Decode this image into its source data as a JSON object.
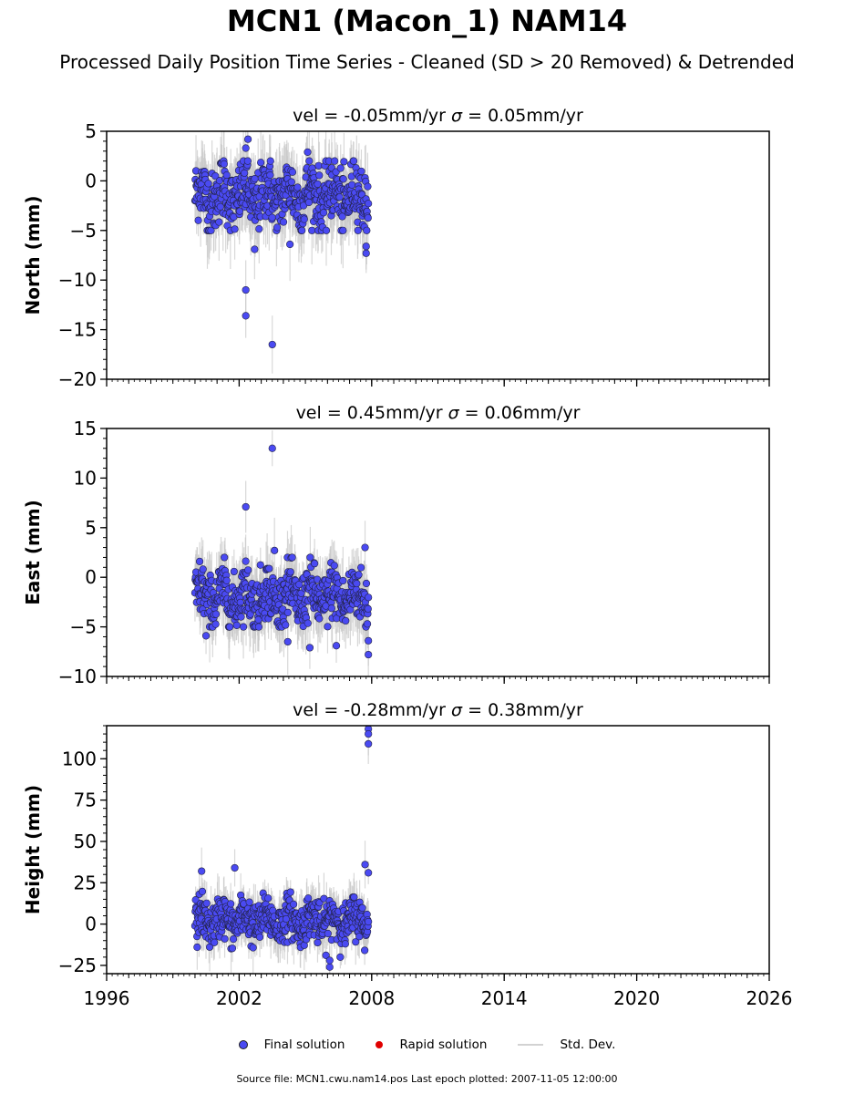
{
  "title": "MCN1 (Macon_1) NAM14",
  "subtitle": "Processed Daily Position Time Series - Cleaned (SD > 20 Removed) & Detrended",
  "legend": {
    "final": "Final solution",
    "rapid": "Rapid solution",
    "std": "Std. Dev."
  },
  "footer": "Source file: MCN1.cwu.nam14.pos  Last epoch plotted: 2007-11-05 12:00:00",
  "colors": {
    "final": "#4a4af2",
    "rapid": "#e00000",
    "std": "#c8c8c8"
  },
  "chart_data": [
    {
      "type": "scatter",
      "title_vel": "vel = -0.05mm/yr",
      "title_sigma": "= 0.05mm/yr",
      "ylabel": "North (mm)",
      "xlim": [
        1996,
        2026
      ],
      "ylim": [
        -20,
        5
      ],
      "yticks": [
        5,
        0,
        -5,
        -10,
        -15,
        -20
      ],
      "yticklabels": [
        "5",
        "0",
        "−5",
        "−10",
        "−15",
        "−20"
      ],
      "data_span": [
        2000.0,
        2007.85
      ],
      "typical_range": [
        -5,
        2
      ],
      "center": -1.5,
      "spread": 2.0,
      "outliers": [
        {
          "x": 2002.3,
          "y": -11.0
        },
        {
          "x": 2002.3,
          "y": -13.6
        },
        {
          "x": 2003.5,
          "y": -16.5
        },
        {
          "x": 2002.4,
          "y": 4.2
        },
        {
          "x": 2002.3,
          "y": 3.3
        },
        {
          "x": 2005.1,
          "y": 2.9
        },
        {
          "x": 2002.7,
          "y": -6.9
        },
        {
          "x": 2007.75,
          "y": -7.3
        },
        {
          "x": 2007.75,
          "y": -6.6
        },
        {
          "x": 2004.3,
          "y": -6.4
        }
      ]
    },
    {
      "type": "scatter",
      "title_vel": "vel = 0.45mm/yr",
      "title_sigma": "= 0.06mm/yr",
      "ylabel": "East (mm)",
      "xlim": [
        1996,
        2026
      ],
      "ylim": [
        -10,
        15
      ],
      "yticks": [
        15,
        10,
        5,
        0,
        -5,
        -10
      ],
      "yticklabels": [
        "15",
        "10",
        "5",
        "0",
        "−5",
        "−10"
      ],
      "data_span": [
        2000.0,
        2007.85
      ],
      "typical_range": [
        -5,
        2
      ],
      "center": -2.0,
      "spread": 1.8,
      "outliers": [
        {
          "x": 2003.5,
          "y": 13.0
        },
        {
          "x": 2002.3,
          "y": 7.1
        },
        {
          "x": 2007.7,
          "y": 3.0
        },
        {
          "x": 2003.6,
          "y": 2.7
        },
        {
          "x": 2007.85,
          "y": -7.8
        },
        {
          "x": 2005.2,
          "y": -7.1
        },
        {
          "x": 2006.4,
          "y": -6.9
        },
        {
          "x": 2004.2,
          "y": -6.5
        },
        {
          "x": 2000.5,
          "y": -5.9
        },
        {
          "x": 2007.85,
          "y": -6.4
        }
      ]
    },
    {
      "type": "scatter",
      "title_vel": "vel = -0.28mm/yr",
      "title_sigma": "= 0.38mm/yr",
      "ylabel": "Height (mm)",
      "xlim": [
        1996,
        2026
      ],
      "ylim": [
        -30,
        120
      ],
      "yticks": [
        100,
        75,
        50,
        25,
        0,
        -25
      ],
      "yticklabels": [
        "100",
        "75",
        "50",
        "25",
        "0",
        "−25"
      ],
      "data_span": [
        2000.0,
        2007.85
      ],
      "typical_range": [
        -20,
        30
      ],
      "center": 2.0,
      "spread": 8.0,
      "outliers": [
        {
          "x": 2007.85,
          "y": 118.0
        },
        {
          "x": 2007.85,
          "y": 115.0
        },
        {
          "x": 2007.85,
          "y": 109.0
        },
        {
          "x": 2007.7,
          "y": 36.0
        },
        {
          "x": 2007.85,
          "y": 31.0
        },
        {
          "x": 2000.3,
          "y": 32.0
        },
        {
          "x": 2001.8,
          "y": 34.0
        },
        {
          "x": 2006.1,
          "y": -26.0
        },
        {
          "x": 2006.1,
          "y": -22.0
        },
        {
          "x": 2000.1,
          "y": -14.0
        }
      ]
    }
  ],
  "xticks": [
    1996,
    2002,
    2008,
    2014,
    2020,
    2026
  ],
  "xticklabels": [
    "1996",
    "2002",
    "2008",
    "2014",
    "2020",
    "2026"
  ]
}
